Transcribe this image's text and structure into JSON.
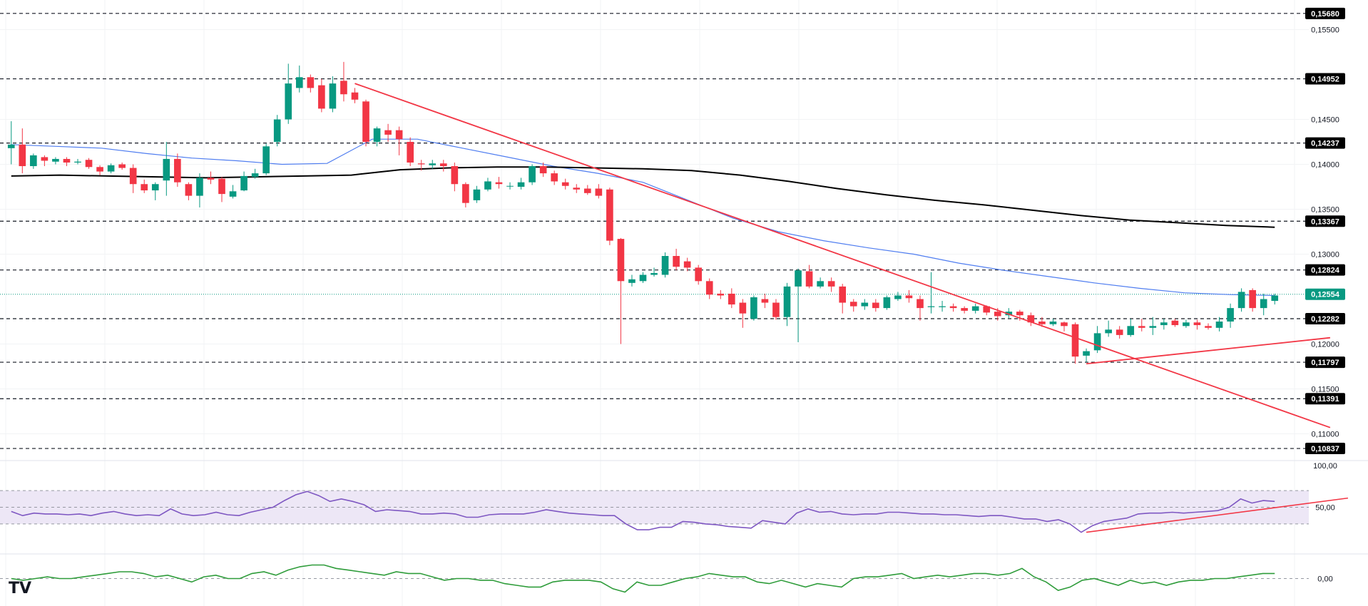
{
  "logo": "TV",
  "colors": {
    "up": "#089981",
    "down": "#f23645",
    "ema_fast": "#4f7df0",
    "ema_slow": "#000000",
    "trendline": "#f23645",
    "rsi": "#7e57c2",
    "rsi_band": "#ede7f6",
    "momentum": "#2e9c3a",
    "level_bg": "#000000",
    "current_bg": "#089981"
  },
  "chart_data": [
    {
      "type": "candlestick",
      "panel": "price",
      "ylim": [
        0.1075,
        0.1575
      ],
      "y_ticks": [
        "0,15500",
        "0,14500",
        "0,14000",
        "0,13500",
        "0,13000",
        "0,12000",
        "0,11500",
        "0,11000"
      ],
      "levels": [
        {
          "value": 0.1568,
          "label": "0,15680"
        },
        {
          "value": 0.14952,
          "label": "0,14952"
        },
        {
          "value": 0.14237,
          "label": "0,14237"
        },
        {
          "value": 0.13367,
          "label": "0,13367"
        },
        {
          "value": 0.12824,
          "label": "0,12824"
        },
        {
          "value": 0.12282,
          "label": "0,12282"
        },
        {
          "value": 0.11797,
          "label": "0,11797"
        },
        {
          "value": 0.11391,
          "label": "0,11391"
        },
        {
          "value": 0.10837,
          "label": "0,10837"
        }
      ],
      "current_price": {
        "value": 0.12554,
        "label": "0,12554"
      },
      "candles": [
        [
          0.1418,
          0.1422,
          0.14,
          0.1448
        ],
        [
          0.1422,
          0.1398,
          0.139,
          0.144
        ],
        [
          0.1398,
          0.141,
          0.1395,
          0.1412
        ],
        [
          0.1408,
          0.1404,
          0.1398,
          0.141
        ],
        [
          0.1403,
          0.1406,
          0.14,
          0.1408
        ],
        [
          0.1406,
          0.1402,
          0.1398,
          0.1408
        ],
        [
          0.1402,
          0.1403,
          0.14,
          0.1406
        ],
        [
          0.1405,
          0.1397,
          0.1395,
          0.1407
        ],
        [
          0.1397,
          0.1392,
          0.1388,
          0.1399
        ],
        [
          0.1392,
          0.1399,
          0.139,
          0.1401
        ],
        [
          0.14,
          0.1396,
          0.1394,
          0.1402
        ],
        [
          0.1396,
          0.1378,
          0.1368,
          0.14
        ],
        [
          0.1378,
          0.1371,
          0.1368,
          0.1383
        ],
        [
          0.1371,
          0.1378,
          0.136,
          0.138
        ],
        [
          0.1382,
          0.1406,
          0.1365,
          0.1425
        ],
        [
          0.1406,
          0.138,
          0.1375,
          0.1412
        ],
        [
          0.1378,
          0.1365,
          0.136,
          0.138
        ],
        [
          0.1365,
          0.1385,
          0.1352,
          0.139
        ],
        [
          0.1385,
          0.1383,
          0.1378,
          0.1392
        ],
        [
          0.1384,
          0.1367,
          0.1358,
          0.1386
        ],
        [
          0.1364,
          0.137,
          0.1362,
          0.1377
        ],
        [
          0.1371,
          0.1387,
          0.137,
          0.1392
        ],
        [
          0.1386,
          0.139,
          0.1384,
          0.1395
        ],
        [
          0.139,
          0.142,
          0.1388,
          0.1423
        ],
        [
          0.1425,
          0.145,
          0.142,
          0.1455
        ],
        [
          0.145,
          0.149,
          0.1445,
          0.1512
        ],
        [
          0.1485,
          0.1497,
          0.148,
          0.151
        ],
        [
          0.1497,
          0.1485,
          0.148,
          0.15
        ],
        [
          0.1488,
          0.1462,
          0.1458,
          0.1495
        ],
        [
          0.1462,
          0.149,
          0.1458,
          0.1498
        ],
        [
          0.1493,
          0.1478,
          0.147,
          0.1514
        ],
        [
          0.148,
          0.1472,
          0.1468,
          0.1485
        ],
        [
          0.147,
          0.1425,
          0.142,
          0.1472
        ],
        [
          0.1425,
          0.144,
          0.142,
          0.1442
        ],
        [
          0.1438,
          0.1433,
          0.1425,
          0.1445
        ],
        [
          0.1438,
          0.1428,
          0.141,
          0.1442
        ],
        [
          0.1425,
          0.1402,
          0.1398,
          0.143
        ],
        [
          0.1401,
          0.14,
          0.1393,
          0.1405
        ],
        [
          0.1399,
          0.1401,
          0.1395,
          0.1405
        ],
        [
          0.1401,
          0.1398,
          0.1392,
          0.1405
        ],
        [
          0.1398,
          0.1378,
          0.137,
          0.1402
        ],
        [
          0.1378,
          0.1357,
          0.1352,
          0.138
        ],
        [
          0.136,
          0.1372,
          0.1357,
          0.1376
        ],
        [
          0.1372,
          0.1381,
          0.137,
          0.1385
        ],
        [
          0.138,
          0.1378,
          0.1373,
          0.1386
        ],
        [
          0.1376,
          0.1376,
          0.1372,
          0.138
        ],
        [
          0.1375,
          0.138,
          0.1372,
          0.1385
        ],
        [
          0.138,
          0.1398,
          0.1377,
          0.14
        ],
        [
          0.1398,
          0.139,
          0.1386,
          0.1402
        ],
        [
          0.139,
          0.1381,
          0.1377,
          0.1393
        ],
        [
          0.138,
          0.1376,
          0.1372,
          0.1384
        ],
        [
          0.1374,
          0.1372,
          0.1368,
          0.1378
        ],
        [
          0.1373,
          0.1368,
          0.1366,
          0.1377
        ],
        [
          0.1373,
          0.1365,
          0.1362,
          0.1378
        ],
        [
          0.1372,
          0.1315,
          0.131,
          0.1374
        ],
        [
          0.1317,
          0.127,
          0.12,
          0.1318
        ],
        [
          0.1268,
          0.1272,
          0.1264,
          0.1277
        ],
        [
          0.127,
          0.1277,
          0.1268,
          0.128
        ],
        [
          0.1277,
          0.1279,
          0.1275,
          0.1285
        ],
        [
          0.1277,
          0.1298,
          0.1274,
          0.1302
        ],
        [
          0.1298,
          0.1286,
          0.1282,
          0.1306
        ],
        [
          0.1292,
          0.1285,
          0.1281,
          0.1296
        ],
        [
          0.1285,
          0.127,
          0.1266,
          0.1288
        ],
        [
          0.127,
          0.1255,
          0.125,
          0.1273
        ],
        [
          0.1256,
          0.1254,
          0.125,
          0.126
        ],
        [
          0.1256,
          0.1244,
          0.124,
          0.1262
        ],
        [
          0.1246,
          0.1234,
          0.1218,
          0.125
        ],
        [
          0.1228,
          0.1252,
          0.1226,
          0.1254
        ],
        [
          0.125,
          0.1246,
          0.124,
          0.1256
        ],
        [
          0.1246,
          0.123,
          0.1227,
          0.125
        ],
        [
          0.123,
          0.1264,
          0.122,
          0.1268
        ],
        [
          0.1264,
          0.1282,
          0.1202,
          0.1284
        ],
        [
          0.1281,
          0.1264,
          0.1262,
          0.1288
        ],
        [
          0.1264,
          0.127,
          0.1262,
          0.1274
        ],
        [
          0.127,
          0.1264,
          0.1258,
          0.1274
        ],
        [
          0.1264,
          0.1246,
          0.1234,
          0.1267
        ],
        [
          0.1247,
          0.1242,
          0.1236,
          0.125
        ],
        [
          0.1242,
          0.1246,
          0.1238,
          0.125
        ],
        [
          0.1246,
          0.124,
          0.1236,
          0.125
        ],
        [
          0.124,
          0.1252,
          0.1238,
          0.1254
        ],
        [
          0.125,
          0.1254,
          0.1248,
          0.1258
        ],
        [
          0.1254,
          0.1251,
          0.1246,
          0.126
        ],
        [
          0.125,
          0.124,
          0.1226,
          0.1254
        ],
        [
          0.1241,
          0.1242,
          0.1234,
          0.128
        ],
        [
          0.1241,
          0.1242,
          0.1236,
          0.1248
        ],
        [
          0.1242,
          0.124,
          0.1236,
          0.1245
        ],
        [
          0.124,
          0.1237,
          0.1234,
          0.1242
        ],
        [
          0.1237,
          0.1242,
          0.1234,
          0.1245
        ],
        [
          0.1242,
          0.1235,
          0.1232,
          0.1243
        ],
        [
          0.1236,
          0.1231,
          0.1226,
          0.124
        ],
        [
          0.1232,
          0.1236,
          0.1229,
          0.124
        ],
        [
          0.1236,
          0.1232,
          0.1226,
          0.1238
        ],
        [
          0.1232,
          0.1224,
          0.122,
          0.1235
        ],
        [
          0.1225,
          0.1222,
          0.1219,
          0.123
        ],
        [
          0.1222,
          0.1225,
          0.122,
          0.1228
        ],
        [
          0.1224,
          0.122,
          0.1214,
          0.1225
        ],
        [
          0.1222,
          0.1186,
          0.1178,
          0.1224
        ],
        [
          0.1187,
          0.1192,
          0.118,
          0.1195
        ],
        [
          0.1193,
          0.1212,
          0.119,
          0.122
        ],
        [
          0.1212,
          0.1216,
          0.1208,
          0.1226
        ],
        [
          0.1216,
          0.121,
          0.1206,
          0.122
        ],
        [
          0.121,
          0.122,
          0.1208,
          0.1228
        ],
        [
          0.122,
          0.1218,
          0.1214,
          0.1228
        ],
        [
          0.1218,
          0.122,
          0.121,
          0.123
        ],
        [
          0.1221,
          0.1224,
          0.1216,
          0.1228
        ],
        [
          0.1226,
          0.1221,
          0.1219,
          0.1228
        ],
        [
          0.122,
          0.1224,
          0.1218,
          0.1227
        ],
        [
          0.1224,
          0.1221,
          0.1216,
          0.1227
        ],
        [
          0.122,
          0.1218,
          0.1216,
          0.1223
        ],
        [
          0.1218,
          0.1225,
          0.1214,
          0.123
        ],
        [
          0.1225,
          0.124,
          0.1218,
          0.1245
        ],
        [
          0.124,
          0.1258,
          0.1236,
          0.1262
        ],
        [
          0.126,
          0.124,
          0.1236,
          0.1262
        ],
        [
          0.124,
          0.125,
          0.1232,
          0.1256
        ],
        [
          0.1248,
          0.1254,
          0.1244,
          0.1256
        ]
      ],
      "ema_fast": [
        0.1422,
        0.142,
        0.1418,
        0.1412,
        0.1407,
        0.1404,
        0.14,
        0.1401,
        0.1428,
        0.1428,
        0.1418,
        0.1408,
        0.1398,
        0.139,
        0.138,
        0.136,
        0.134,
        0.1325,
        0.1315,
        0.1307,
        0.13,
        0.129,
        0.1282,
        0.1275,
        0.1268,
        0.1262,
        0.1257,
        0.1255,
        0.1254
      ],
      "ema_slow": [
        0.1387,
        0.1388,
        0.1387,
        0.1386,
        0.1385,
        0.1386,
        0.1387,
        0.1388,
        0.1394,
        0.1396,
        0.1397,
        0.1397,
        0.1396,
        0.1395,
        0.1393,
        0.1388,
        0.1381,
        0.1373,
        0.1366,
        0.136,
        0.1355,
        0.1349,
        0.1343,
        0.1338,
        0.1335,
        0.1332,
        0.133
      ],
      "trendlines": [
        {
          "from": [
            31,
            0.149
          ],
          "to": [
            119,
            0.1107
          ]
        },
        {
          "from": [
            97,
            0.1178
          ],
          "to": [
            119,
            0.1207
          ]
        }
      ]
    },
    {
      "type": "line",
      "panel": "rsi",
      "ylim": [
        0,
        100
      ],
      "y_ticks": [
        "100,00",
        "50,00"
      ],
      "band": [
        30,
        70
      ],
      "midline": 50,
      "values": [
        45,
        40,
        43,
        42,
        42,
        41,
        42,
        40,
        43,
        45,
        42,
        40,
        41,
        40,
        48,
        42,
        40,
        41,
        44,
        41,
        40,
        44,
        47,
        50,
        58,
        65,
        69,
        64,
        57,
        60,
        57,
        53,
        45,
        47,
        46,
        45,
        42,
        42,
        43,
        42,
        38,
        38,
        41,
        42,
        42,
        42,
        44,
        47,
        45,
        43,
        42,
        41,
        40,
        40,
        30,
        23,
        23,
        26,
        26,
        33,
        32,
        30,
        29,
        27,
        26,
        25,
        34,
        32,
        30,
        43,
        48,
        44,
        45,
        42,
        41,
        42,
        42,
        44,
        44,
        43,
        42,
        42,
        41,
        41,
        40,
        39,
        40,
        40,
        38,
        36,
        36,
        33,
        35,
        30,
        20,
        28,
        33,
        35,
        37,
        42,
        43,
        43,
        44,
        43,
        44,
        45,
        46,
        50,
        60,
        55,
        58,
        57
      ],
      "trendline": {
        "from": [
          97,
          20
        ],
        "to": [
          119,
          58
        ]
      }
    },
    {
      "type": "line",
      "panel": "momentum",
      "y_ticks": [
        "0,00"
      ],
      "zero_line": 0,
      "values": [
        0,
        -1,
        0,
        1,
        0,
        0,
        1,
        2,
        3,
        4,
        4,
        3,
        1,
        2,
        0,
        -2,
        1,
        2,
        0,
        0,
        3,
        4,
        2,
        5,
        7,
        8,
        8,
        6,
        5,
        4,
        3,
        2,
        4,
        3,
        3,
        1,
        -1,
        0,
        0,
        -1,
        -1,
        -3,
        -4,
        -5,
        -5,
        -2,
        -1,
        -1,
        -1,
        -2,
        -6,
        -8,
        -2,
        -4,
        -4,
        -2,
        0,
        1,
        3,
        2,
        1,
        1,
        -2,
        -3,
        -1,
        -3,
        -5,
        -3,
        -4,
        -5,
        0,
        1,
        1,
        2,
        3,
        0,
        1,
        2,
        1,
        2,
        3,
        3,
        2,
        3,
        6,
        1,
        -2,
        -7,
        -5,
        -1,
        0,
        -2,
        -4,
        -1,
        -3,
        -2,
        -4,
        -2,
        -1,
        -1,
        0,
        0,
        1,
        2,
        3,
        3
      ],
      "ylim": [
        -12,
        12
      ]
    }
  ]
}
